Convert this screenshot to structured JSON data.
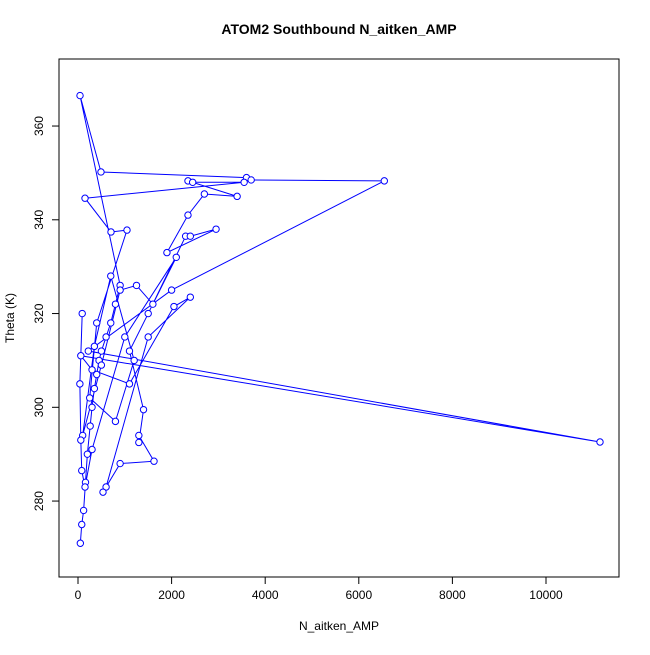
{
  "chart_data": {
    "type": "line",
    "title": "ATOM2 Southbound N_aitken_AMP",
    "x_label": "N_aitken_AMP",
    "y_label": "Theta (K)",
    "color": "#0000ff",
    "x": [
      50,
      80,
      120,
      160,
      200,
      260,
      300,
      350,
      400,
      450,
      500,
      600,
      700,
      800,
      900,
      43,
      491,
      3600,
      3700,
      6545,
      2000,
      220,
      11154,
      60,
      300,
      1100,
      2050,
      2400,
      1500,
      600,
      534,
      900,
      1624,
      1300,
      1300,
      1400,
      1100,
      1500,
      2300,
      2400,
      2950,
      1900,
      2350,
      2700,
      3400,
      2350,
      2450,
      3550,
      150,
      705,
      1047,
      400,
      250,
      800,
      1200,
      700,
      350,
      100,
      500,
      900,
      1250,
      1600,
      2100,
      1000,
      300,
      150,
      80,
      60,
      40,
      90
    ],
    "y": [
      271,
      275,
      278,
      284,
      290,
      296,
      300,
      304,
      307,
      310,
      312,
      315,
      318,
      322,
      326,
      366.5,
      350.2,
      349,
      348.5,
      348.3,
      325,
      312,
      292.6,
      311,
      308,
      305,
      321.5,
      323.5,
      315,
      283,
      281.9,
      288,
      288.5,
      294,
      292.5,
      299.5,
      312,
      320,
      336.5,
      336.5,
      338,
      333,
      341,
      345.5,
      345,
      348.3,
      348,
      348,
      344.6,
      337.4,
      337.8,
      318,
      302,
      297,
      310,
      328,
      313,
      294,
      309,
      325,
      326,
      322,
      332,
      315,
      291,
      283,
      286.5,
      293,
      305,
      320
    ],
    "xlim": [
      -406,
      11560
    ],
    "ylim": [
      263.8,
      374.3
    ],
    "xticks": [
      0,
      2000,
      4000,
      6000,
      8000,
      10000
    ],
    "yticks": [
      280,
      300,
      320,
      340,
      360
    ]
  }
}
